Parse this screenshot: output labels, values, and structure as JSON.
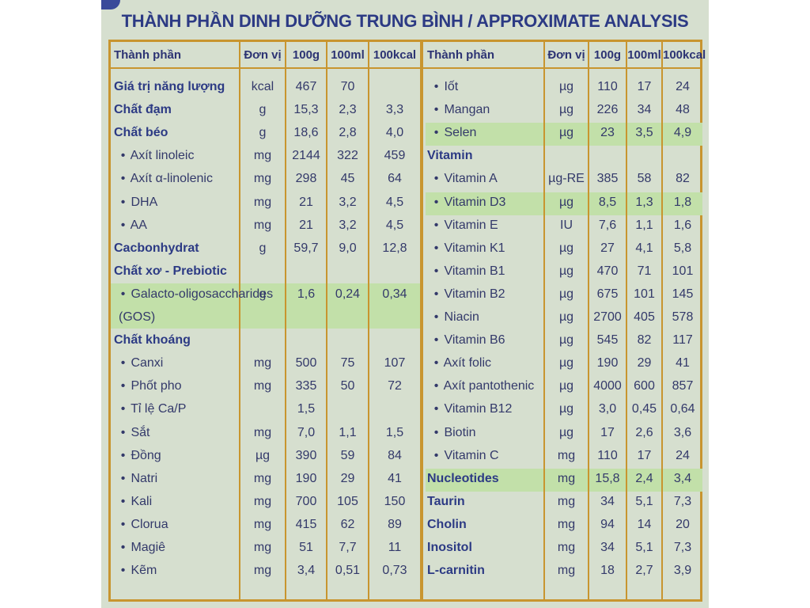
{
  "title": "THÀNH PHẦN DINH DƯỠNG TRUNG BÌNH / APPROXIMATE ANALYSIS",
  "colors": {
    "border": "#c8952f",
    "text": "#33396a",
    "heading": "#2c3a84",
    "highlight": "#c2e0a9",
    "background": "#d6dfcf"
  },
  "left": {
    "headers": [
      "Thành phần",
      "Đơn vị",
      "100g",
      "100ml",
      "100kcal"
    ],
    "rows": [
      {
        "name": "Giá trị năng lượng",
        "unit": "kcal",
        "g100": "467",
        "ml100": "70",
        "kcal100": ""
      },
      {
        "name": "Chất đạm",
        "unit": "g",
        "g100": "15,3",
        "ml100": "2,3",
        "kcal100": "3,3"
      },
      {
        "name": "Chất béo",
        "unit": "g",
        "g100": "18,6",
        "ml100": "2,8",
        "kcal100": "4,0"
      },
      {
        "name": "Axít linoleic",
        "unit": "mg",
        "g100": "2144",
        "ml100": "322",
        "kcal100": "459"
      },
      {
        "name": "Axít α-linolenic",
        "unit": "mg",
        "g100": "298",
        "ml100": "45",
        "kcal100": "64"
      },
      {
        "name": "DHA",
        "unit": "mg",
        "g100": "21",
        "ml100": "3,2",
        "kcal100": "4,5"
      },
      {
        "name": "AA",
        "unit": "mg",
        "g100": "21",
        "ml100": "3,2",
        "kcal100": "4,5"
      },
      {
        "name": "Cacbonhydrat",
        "unit": "g",
        "g100": "59,7",
        "ml100": "9,0",
        "kcal100": "12,8"
      },
      {
        "name": "Chất xơ - Prebiotic",
        "unit": "",
        "g100": "",
        "ml100": "",
        "kcal100": ""
      },
      {
        "name": "Galacto-oligosaccharides",
        "unit": "g",
        "g100": "1,6",
        "ml100": "0,24",
        "kcal100": "0,34"
      },
      {
        "name": "(GOS)",
        "unit": "",
        "g100": "",
        "ml100": "",
        "kcal100": ""
      },
      {
        "name": "Chất khoáng",
        "unit": "",
        "g100": "",
        "ml100": "",
        "kcal100": ""
      },
      {
        "name": "Canxi",
        "unit": "mg",
        "g100": "500",
        "ml100": "75",
        "kcal100": "107"
      },
      {
        "name": "Phốt pho",
        "unit": "mg",
        "g100": "335",
        "ml100": "50",
        "kcal100": "72"
      },
      {
        "name": "Tỉ lệ Ca/P",
        "unit": "",
        "g100": "1,5",
        "ml100": "",
        "kcal100": ""
      },
      {
        "name": "Sắt",
        "unit": "mg",
        "g100": "7,0",
        "ml100": "1,1",
        "kcal100": "1,5"
      },
      {
        "name": "Đồng",
        "unit": "µg",
        "g100": "390",
        "ml100": "59",
        "kcal100": "84"
      },
      {
        "name": "Natri",
        "unit": "mg",
        "g100": "190",
        "ml100": "29",
        "kcal100": "41"
      },
      {
        "name": "Kali",
        "unit": "mg",
        "g100": "700",
        "ml100": "105",
        "kcal100": "150"
      },
      {
        "name": "Clorua",
        "unit": "mg",
        "g100": "415",
        "ml100": "62",
        "kcal100": "89"
      },
      {
        "name": "Magiê",
        "unit": "mg",
        "g100": "51",
        "ml100": "7,7",
        "kcal100": "11"
      },
      {
        "name": "Kẽm",
        "unit": "mg",
        "g100": "3,4",
        "ml100": "0,51",
        "kcal100": "0,73"
      }
    ]
  },
  "right": {
    "headers": [
      "Thành phần",
      "Đơn vị",
      "100g",
      "100ml",
      "100kcal"
    ],
    "rows": [
      {
        "name": "Iốt",
        "unit": "µg",
        "g100": "110",
        "ml100": "17",
        "kcal100": "24"
      },
      {
        "name": "Mangan",
        "unit": "µg",
        "g100": "226",
        "ml100": "34",
        "kcal100": "48"
      },
      {
        "name": "Selen",
        "unit": "µg",
        "g100": "23",
        "ml100": "3,5",
        "kcal100": "4,9"
      },
      {
        "name": "Vitamin",
        "unit": "",
        "g100": "",
        "ml100": "",
        "kcal100": ""
      },
      {
        "name": "Vitamin A",
        "unit": "µg-RE",
        "g100": "385",
        "ml100": "58",
        "kcal100": "82"
      },
      {
        "name": "Vitamin D3",
        "unit": "µg",
        "g100": "8,5",
        "ml100": "1,3",
        "kcal100": "1,8"
      },
      {
        "name": "Vitamin E",
        "unit": "IU",
        "g100": "7,6",
        "ml100": "1,1",
        "kcal100": "1,6"
      },
      {
        "name": "Vitamin K1",
        "unit": "µg",
        "g100": "27",
        "ml100": "4,1",
        "kcal100": "5,8"
      },
      {
        "name": "Vitamin B1",
        "unit": "µg",
        "g100": "470",
        "ml100": "71",
        "kcal100": "101"
      },
      {
        "name": "Vitamin B2",
        "unit": "µg",
        "g100": "675",
        "ml100": "101",
        "kcal100": "145"
      },
      {
        "name": "Niacin",
        "unit": "µg",
        "g100": "2700",
        "ml100": "405",
        "kcal100": "578"
      },
      {
        "name": "Vitamin B6",
        "unit": "µg",
        "g100": "545",
        "ml100": "82",
        "kcal100": "117"
      },
      {
        "name": "Axít folic",
        "unit": "µg",
        "g100": "190",
        "ml100": "29",
        "kcal100": "41"
      },
      {
        "name": "Axít pantothenic",
        "unit": "µg",
        "g100": "4000",
        "ml100": "600",
        "kcal100": "857"
      },
      {
        "name": "Vitamin B12",
        "unit": "µg",
        "g100": "3,0",
        "ml100": "0,45",
        "kcal100": "0,64"
      },
      {
        "name": "Biotin",
        "unit": "µg",
        "g100": "17",
        "ml100": "2,6",
        "kcal100": "3,6"
      },
      {
        "name": "Vitamin C",
        "unit": "mg",
        "g100": "110",
        "ml100": "17",
        "kcal100": "24"
      },
      {
        "name": "Nucleotides",
        "unit": "mg",
        "g100": "15,8",
        "ml100": "2,4",
        "kcal100": "3,4"
      },
      {
        "name": "Taurin",
        "unit": "mg",
        "g100": "34",
        "ml100": "5,1",
        "kcal100": "7,3"
      },
      {
        "name": "Cholin",
        "unit": "mg",
        "g100": "94",
        "ml100": "14",
        "kcal100": "20"
      },
      {
        "name": "Inositol",
        "unit": "mg",
        "g100": "34",
        "ml100": "5,1",
        "kcal100": "7,3"
      },
      {
        "name": "L-carnitin",
        "unit": "mg",
        "g100": "18",
        "ml100": "2,7",
        "kcal100": "3,9"
      }
    ]
  }
}
